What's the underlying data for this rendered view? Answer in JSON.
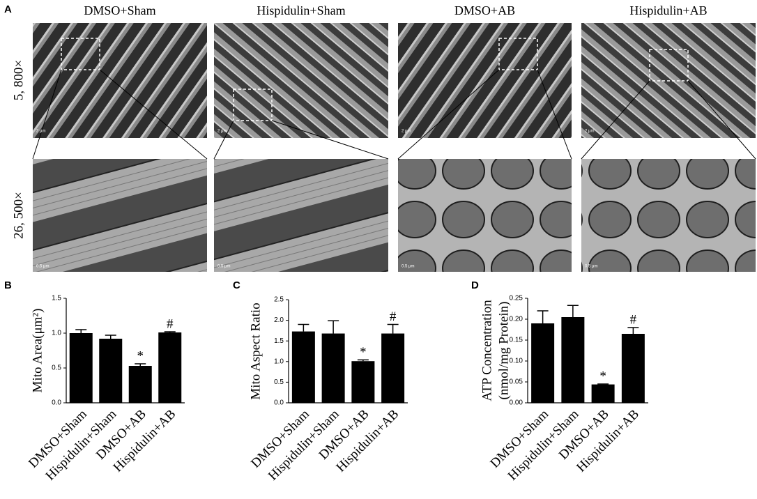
{
  "panel_labels": [
    "A",
    "B",
    "C",
    "D"
  ],
  "panel_a": {
    "titles": [
      "DMSO+Sham",
      "Hispidulin+Sham",
      "DMSO+AB",
      "Hispidulin+AB"
    ],
    "rows": [
      "5, 800×",
      "26, 500×"
    ],
    "scale_bars": [
      [
        "2 μm",
        "2 μm",
        "2 μm",
        "2 μm"
      ],
      [
        "0.5 μm",
        "0.5 μm",
        "0.5 μm",
        "0.5 μm"
      ]
    ]
  },
  "chart_data": [
    {
      "type": "bar",
      "ylabel": [
        "Mito Area(μm²)"
      ],
      "categories": [
        "DMSO+Sham",
        "Hispidulin+Sham",
        "DMSO+AB",
        "Hispidulin+AB"
      ],
      "values": [
        1.0,
        0.92,
        0.53,
        1.01
      ],
      "errors": [
        0.05,
        0.05,
        0.03,
        0.01
      ],
      "markers": [
        null,
        null,
        "*",
        "#"
      ],
      "color": "#000000",
      "ylim": [
        0,
        1.5
      ],
      "yticks": [
        {
          "value": 0,
          "label": "0.0"
        },
        0.5,
        {
          "value": 1,
          "label": "1.0"
        },
        1.5
      ]
    },
    {
      "type": "bar",
      "ylabel": [
        "Mito Aspect Ratio"
      ],
      "categories": [
        "DMSO+Sham",
        "Hispidulin+Sham",
        "DMSO+AB",
        "Hispidulin+AB"
      ],
      "values": [
        1.73,
        1.68,
        1.01,
        1.68
      ],
      "errors": [
        0.17,
        0.31,
        0.03,
        0.22
      ],
      "markers": [
        null,
        null,
        "*",
        "#"
      ],
      "color": "#000000",
      "ylim": [
        0,
        2.5
      ],
      "yticks": [
        {
          "value": 0,
          "label": "0.0"
        },
        0.5,
        {
          "value": 1,
          "label": "1.0"
        },
        1.5,
        {
          "value": 2,
          "label": "2.0"
        },
        2.5
      ]
    },
    {
      "type": "bar",
      "ylabel": [
        "ATP Concentration",
        "(nmol/mg Protein)"
      ],
      "categories": [
        "DMSO+Sham",
        "Hispidulin+Sham",
        "DMSO+AB",
        "Hispidulin+AB"
      ],
      "values": [
        0.19,
        0.205,
        0.044,
        0.165
      ],
      "errors": [
        0.03,
        0.028,
        0.001,
        0.015
      ],
      "markers": [
        null,
        null,
        "*",
        "#"
      ],
      "color": "#000000",
      "ylim": [
        0,
        0.25
      ],
      "yticks": [
        {
          "value": 0,
          "label": "0.00"
        },
        0.05,
        {
          "value": 0.1,
          "label": "0.10"
        },
        0.15,
        {
          "value": 0.2,
          "label": "0.20"
        },
        0.25
      ]
    }
  ]
}
